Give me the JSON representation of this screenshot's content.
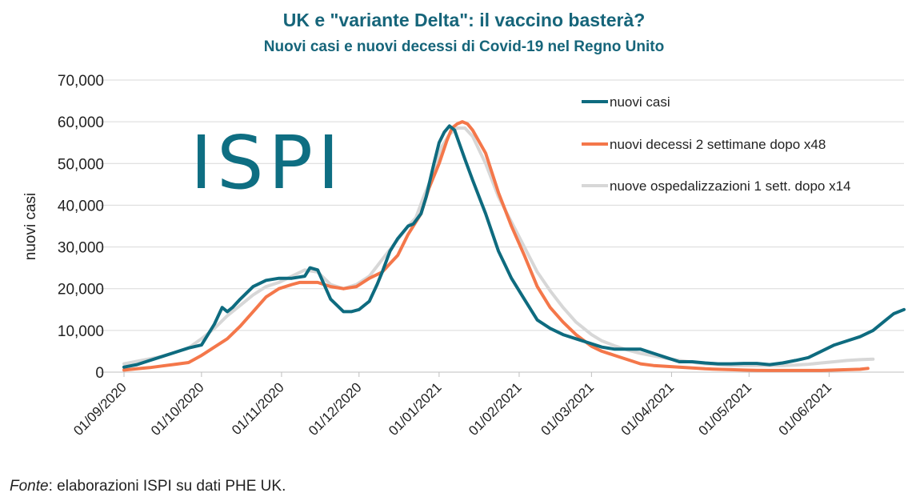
{
  "title": "UK e \"variante Delta\": il vaccino basterà?",
  "subtitle": "Nuovi casi e nuovi decessi di Covid-19 nel Regno Unito",
  "logo_text": "ISPI",
  "footer": {
    "label": "Fonte",
    "text": ": elaborazioni ISPI su dati PHE UK."
  },
  "colors": {
    "cases": "#0e6b7f",
    "deaths": "#f4774a",
    "hosp": "#d7d7d7",
    "title": "#16657a",
    "grid": "#d9d9d9"
  },
  "chart_data": {
    "type": "line",
    "title": "UK e \"variante Delta\": il vaccino basterà?",
    "subtitle": "Nuovi casi e nuovi decessi di Covid-19 nel Regno Unito",
    "xlabel": "",
    "ylabel": "nuovi casi",
    "ylim": [
      0,
      70000
    ],
    "yticks": [
      0,
      10000,
      20000,
      30000,
      40000,
      50000,
      60000,
      70000
    ],
    "ytick_labels": [
      "0",
      "10,000",
      "20,000",
      "30,000",
      "40,000",
      "50,000",
      "60,000",
      "70,000"
    ],
    "xlim_days": [
      0,
      302
    ],
    "xtick_labels": [
      {
        "day": 0,
        "label": "01/09/2020"
      },
      {
        "day": 30,
        "label": "01/10/2020"
      },
      {
        "day": 61,
        "label": "01/11/2020"
      },
      {
        "day": 91,
        "label": "01/12/2020"
      },
      {
        "day": 122,
        "label": "01/01/2021"
      },
      {
        "day": 153,
        "label": "01/02/2021"
      },
      {
        "day": 181,
        "label": "01/03/2021"
      },
      {
        "day": 212,
        "label": "01/04/2021"
      },
      {
        "day": 242,
        "label": "01/05/2021"
      },
      {
        "day": 273,
        "label": "01/06/2021"
      }
    ],
    "legend_position": "top-right",
    "grid": true,
    "series": [
      {
        "name": "nuovi casi",
        "color": "#0e6b7f",
        "x": [
          0,
          5,
          10,
          15,
          20,
          25,
          30,
          35,
          38,
          40,
          42,
          45,
          50,
          55,
          60,
          65,
          70,
          72,
          75,
          80,
          85,
          88,
          91,
          95,
          98,
          100,
          103,
          106,
          110,
          112,
          115,
          117,
          120,
          122,
          124,
          126,
          128,
          130,
          132,
          135,
          140,
          145,
          150,
          155,
          160,
          165,
          170,
          175,
          181,
          185,
          190,
          195,
          200,
          205,
          210,
          215,
          220,
          225,
          230,
          235,
          240,
          245,
          250,
          255,
          260,
          265,
          270,
          275,
          280,
          285,
          290,
          295,
          298,
          302
        ],
        "y": [
          1200,
          1800,
          2800,
          3800,
          4800,
          5800,
          6500,
          11500,
          15500,
          14500,
          15500,
          17500,
          20500,
          22000,
          22500,
          22500,
          23000,
          25000,
          24500,
          17500,
          14500,
          14500,
          15000,
          17000,
          21000,
          24000,
          29000,
          32000,
          35000,
          35500,
          38000,
          42000,
          50000,
          55000,
          57500,
          59000,
          58000,
          54500,
          51000,
          46000,
          38000,
          29000,
          22500,
          17500,
          12500,
          10500,
          9000,
          8000,
          6800,
          6000,
          5500,
          5500,
          5500,
          4500,
          3500,
          2500,
          2500,
          2200,
          2000,
          2000,
          2100,
          2100,
          1800,
          2200,
          2800,
          3500,
          5000,
          6500,
          7500,
          8500,
          10000,
          12500,
          14000,
          15000
        ]
      },
      {
        "name": "nuovi decessi 2 settimane dopo x48",
        "color": "#f4774a",
        "x": [
          0,
          5,
          10,
          15,
          20,
          25,
          30,
          35,
          40,
          45,
          50,
          55,
          60,
          65,
          68,
          70,
          75,
          80,
          85,
          90,
          95,
          100,
          103,
          106,
          110,
          115,
          118,
          122,
          125,
          127,
          129,
          131,
          133,
          135,
          140,
          145,
          150,
          155,
          160,
          165,
          170,
          175,
          181,
          185,
          190,
          195,
          200,
          205,
          210,
          215,
          220,
          225,
          230,
          235,
          240,
          245,
          250,
          255,
          260,
          265,
          270,
          275,
          280,
          285,
          288
        ],
        "y": [
          500,
          800,
          1100,
          1500,
          1900,
          2300,
          4000,
          6000,
          8000,
          11000,
          14500,
          18000,
          20000,
          21000,
          21500,
          21500,
          21500,
          20500,
          20000,
          20500,
          22500,
          24000,
          26000,
          28000,
          33000,
          38000,
          44000,
          50000,
          55500,
          58500,
          59500,
          60000,
          59500,
          58000,
          52500,
          43000,
          35000,
          28000,
          20500,
          15500,
          12000,
          9000,
          6200,
          5000,
          4000,
          3000,
          2000,
          1600,
          1400,
          1200,
          1000,
          800,
          700,
          600,
          500,
          450,
          400,
          400,
          400,
          400,
          400,
          500,
          600,
          700,
          900
        ]
      },
      {
        "name": "nuove ospedalizzazioni 1 sett. dopo x14",
        "color": "#d7d7d7",
        "x": [
          0,
          5,
          10,
          15,
          20,
          25,
          30,
          35,
          40,
          45,
          50,
          55,
          60,
          65,
          70,
          75,
          80,
          85,
          90,
          95,
          100,
          105,
          110,
          113,
          116,
          120,
          123,
          126,
          129,
          132,
          135,
          140,
          145,
          150,
          155,
          160,
          165,
          170,
          175,
          181,
          185,
          190,
          195,
          200,
          205,
          210,
          215,
          220,
          225,
          230,
          235,
          240,
          245,
          250,
          255,
          260,
          265,
          270,
          275,
          280,
          285,
          290
        ],
        "y": [
          2000,
          2600,
          3200,
          3800,
          4800,
          5800,
          8000,
          10500,
          13500,
          16000,
          18500,
          20500,
          21500,
          23000,
          24500,
          24000,
          21000,
          20000,
          21000,
          23000,
          27000,
          31000,
          35000,
          37000,
          42000,
          48000,
          54000,
          57000,
          58500,
          58500,
          56500,
          50000,
          42000,
          36000,
          30000,
          24000,
          19500,
          15500,
          12000,
          9000,
          7500,
          6300,
          5300,
          4500,
          3900,
          3300,
          2800,
          2400,
          2000,
          1800,
          1600,
          1600,
          1600,
          1600,
          1600,
          1700,
          1900,
          2200,
          2500,
          2800,
          3000,
          3100
        ]
      }
    ]
  }
}
